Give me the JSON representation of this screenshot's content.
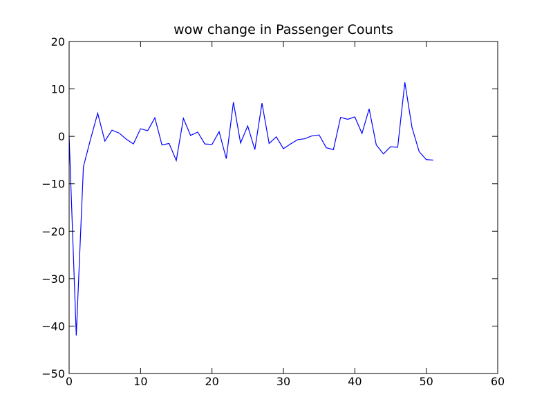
{
  "chart_data": {
    "type": "line",
    "title": "wow change in Passenger Counts",
    "xlabel": "",
    "ylabel": "",
    "xlim": [
      0,
      60
    ],
    "ylim": [
      -50,
      20
    ],
    "xticks": [
      0,
      10,
      20,
      30,
      40,
      50,
      60
    ],
    "yticks": [
      -50,
      -40,
      -30,
      -20,
      -10,
      0,
      10,
      20
    ],
    "xtick_labels": [
      "0",
      "10",
      "20",
      "30",
      "40",
      "50",
      "60"
    ],
    "ytick_labels": [
      "−50",
      "−40",
      "−30",
      "−20",
      "−10",
      "0",
      "10",
      "20"
    ],
    "grid": false,
    "legend": "none",
    "series": [
      {
        "color": "#0000ff",
        "x": [
          0,
          1,
          2,
          3,
          4,
          5,
          6,
          7,
          8,
          9,
          10,
          11,
          12,
          13,
          14,
          15,
          16,
          17,
          18,
          19,
          20,
          21,
          22,
          23,
          24,
          25,
          26,
          27,
          28,
          29,
          30,
          31,
          32,
          33,
          34,
          35,
          36,
          37,
          38,
          39,
          40,
          41,
          42,
          43,
          44,
          45,
          46,
          47,
          48,
          49,
          50,
          51
        ],
        "y": [
          0,
          -42,
          -6.4,
          -0.6,
          4.9,
          -1.0,
          1.3,
          0.7,
          -0.6,
          -1.6,
          1.6,
          1.2,
          3.9,
          -1.8,
          -1.5,
          -5.1,
          3.8,
          0.2,
          0.9,
          -1.6,
          -1.7,
          1.0,
          -4.7,
          7.2,
          -1.4,
          2.2,
          -2.8,
          7.0,
          -1.5,
          -0.1,
          -2.6,
          -1.6,
          -0.7,
          -0.5,
          0.1,
          0.3,
          -2.4,
          -2.8,
          4.0,
          3.6,
          4.1,
          0.6,
          5.8,
          -1.8,
          -3.7,
          -2.2,
          -2.3,
          11.4,
          1.9,
          -3.2,
          -4.9,
          -5.0
        ]
      }
    ]
  }
}
